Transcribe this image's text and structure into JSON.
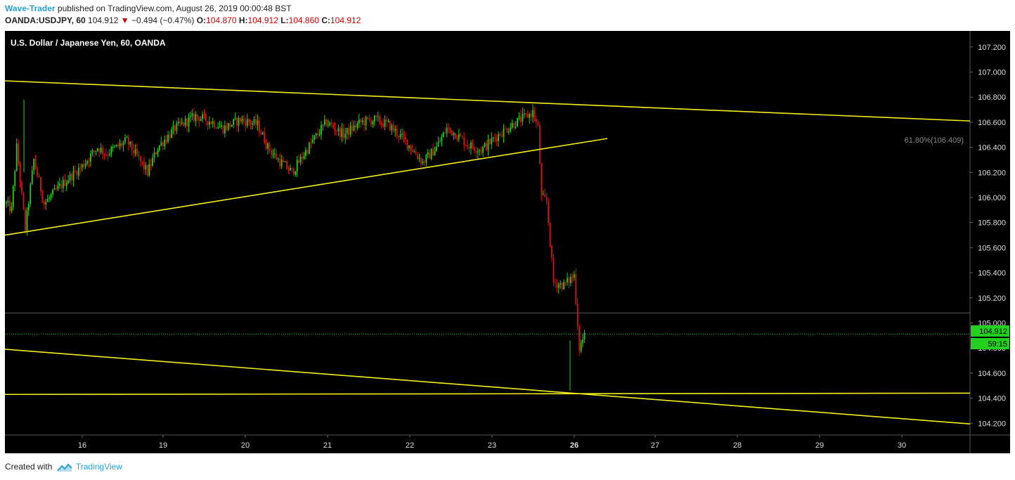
{
  "header": {
    "author": "Wave-Trader",
    "published_text": " published on TradingView.com, August 26, 2019 00:00:48 BST",
    "symbol": "OANDA:USDJPY, 60",
    "last": "104.912",
    "down_arrow": "▼",
    "change": "−0.494 (−0.47%)",
    "o_label": "O:",
    "o_value": "104.870",
    "h_label": "H:",
    "h_value": "104.912",
    "l_label": "L:",
    "l_value": "104.860",
    "c_label": "C:",
    "c_value": "104.912"
  },
  "footer": {
    "created_with": "Created with",
    "brand": "TradingView"
  },
  "colors": {
    "background": "#000000",
    "up": "#22d11e",
    "down": "#e01010",
    "trendline": "#f2ee1e",
    "axis_text": "#dddddd",
    "price_tag": "#22d11e"
  },
  "chart_data": {
    "type": "candlestick",
    "title": "U.S. Dollar / Japanese Yen, 60, OANDA",
    "ylim": [
      104.08,
      107.28
    ],
    "y_ticks": [
      "104.200",
      "104.400",
      "104.600",
      "104.800",
      "105.000",
      "105.200",
      "105.400",
      "105.600",
      "105.800",
      "106.000",
      "106.200",
      "106.400",
      "106.600",
      "106.800",
      "107.000",
      "107.200"
    ],
    "x_ticks": [
      "16",
      "19",
      "20",
      "21",
      "22",
      "23",
      "26",
      "27",
      "28",
      "29",
      "30"
    ],
    "current_price": "104.912",
    "countdown": "59:15",
    "reference_line": 105.08,
    "fib_label": "61.80%(106.409)",
    "trendlines": [
      {
        "name": "upper-resistance",
        "from": [
          "15-start",
          106.93
        ],
        "to": [
          "30-end",
          106.61
        ]
      },
      {
        "name": "rising-support",
        "from": [
          "15-start",
          105.7
        ],
        "to": [
          "26.4",
          106.47
        ]
      },
      {
        "name": "lower-falling",
        "from": [
          "15-start",
          104.79
        ],
        "to": [
          "30-end",
          104.2
        ]
      },
      {
        "name": "horizontal-support",
        "from": [
          "15-start",
          104.43
        ],
        "to": [
          "30-end",
          104.44
        ]
      }
    ],
    "path_anchors": [
      [
        0,
        105.95
      ],
      [
        3,
        105.9
      ],
      [
        6,
        106.4
      ],
      [
        11,
        105.75
      ],
      [
        16,
        106.3
      ],
      [
        22,
        105.95
      ],
      [
        32,
        106.1
      ],
      [
        44,
        106.25
      ],
      [
        53,
        106.4
      ],
      [
        58,
        106.35
      ],
      [
        70,
        106.45
      ],
      [
        82,
        106.2
      ],
      [
        88,
        106.4
      ],
      [
        98,
        106.55
      ],
      [
        110,
        106.65
      ],
      [
        120,
        106.6
      ],
      [
        126,
        106.55
      ],
      [
        136,
        106.62
      ],
      [
        146,
        106.58
      ],
      [
        152,
        106.4
      ],
      [
        158,
        106.3
      ],
      [
        166,
        106.2
      ],
      [
        178,
        106.45
      ],
      [
        186,
        106.6
      ],
      [
        196,
        106.5
      ],
      [
        206,
        106.6
      ],
      [
        214,
        106.62
      ],
      [
        222,
        106.58
      ],
      [
        232,
        106.45
      ],
      [
        242,
        106.28
      ],
      [
        250,
        106.4
      ],
      [
        256,
        106.55
      ],
      [
        262,
        106.5
      ],
      [
        268,
        106.42
      ],
      [
        276,
        106.38
      ],
      [
        286,
        106.5
      ],
      [
        296,
        106.6
      ],
      [
        304,
        106.66
      ],
      [
        306,
        106.68
      ],
      [
        309,
        106.55
      ],
      [
        311,
        106.0
      ],
      [
        314,
        105.97
      ],
      [
        318,
        105.32
      ],
      [
        324,
        105.3
      ],
      [
        330,
        105.38
      ],
      [
        333,
        104.8
      ],
      [
        336,
        104.9
      ]
    ]
  }
}
